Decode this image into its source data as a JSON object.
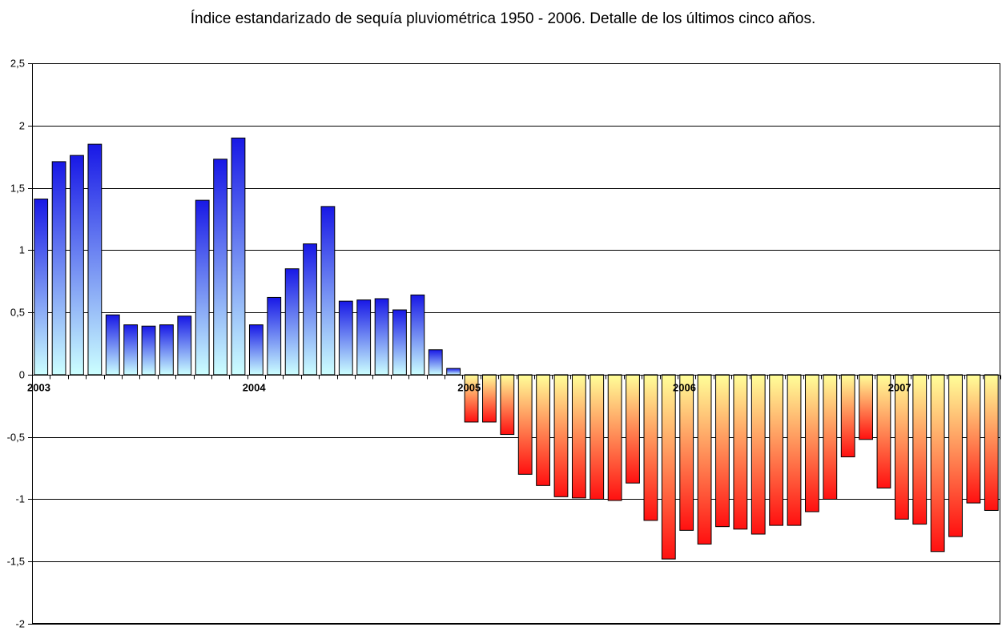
{
  "chart_data": {
    "type": "bar",
    "title": "Índice estandarizado de sequía pluviométrica 1950 - 2006. Detalle de los últimos cinco años.",
    "xlabel": "",
    "ylabel": "",
    "ylim": [
      -2,
      2.5
    ],
    "yticks": [
      2.5,
      2,
      1.5,
      1,
      0.5,
      0,
      -0.5,
      -1,
      -1.5,
      -2
    ],
    "ytick_labels": [
      "2,5",
      "2",
      "1,5",
      "1",
      "0,5",
      "0",
      "-0,5",
      "-1",
      "-1,5",
      "-2"
    ],
    "year_labels": [
      {
        "label": "2003",
        "index": 0
      },
      {
        "label": "2004",
        "index": 12
      },
      {
        "label": "2005",
        "index": 24
      },
      {
        "label": "2006",
        "index": 36
      },
      {
        "label": "2007",
        "index": 48
      }
    ],
    "values": [
      1.41,
      1.71,
      1.76,
      1.85,
      0.48,
      0.4,
      0.39,
      0.4,
      0.47,
      1.4,
      1.73,
      1.9,
      0.4,
      0.62,
      0.85,
      1.05,
      1.35,
      0.59,
      0.6,
      0.61,
      0.52,
      0.64,
      0.2,
      0.05,
      -0.38,
      -0.38,
      -0.48,
      -0.8,
      -0.89,
      -0.98,
      -0.99,
      -1.0,
      -1.01,
      -0.87,
      -1.17,
      -1.48,
      -1.25,
      -1.36,
      -1.22,
      -1.24,
      -1.28,
      -1.21,
      -1.21,
      -1.1,
      -1.0,
      -0.66,
      -0.52,
      -0.91,
      -1.16,
      -1.2,
      -1.42,
      -1.3,
      -1.03,
      -1.09
    ],
    "grid": true,
    "colors": {
      "positive_top": "#1818e6",
      "positive_bottom": "#ccffff",
      "negative_top": "#ffff99",
      "negative_bottom": "#ff1010",
      "gridline": "#000000",
      "bar_stroke": "#000000"
    }
  }
}
